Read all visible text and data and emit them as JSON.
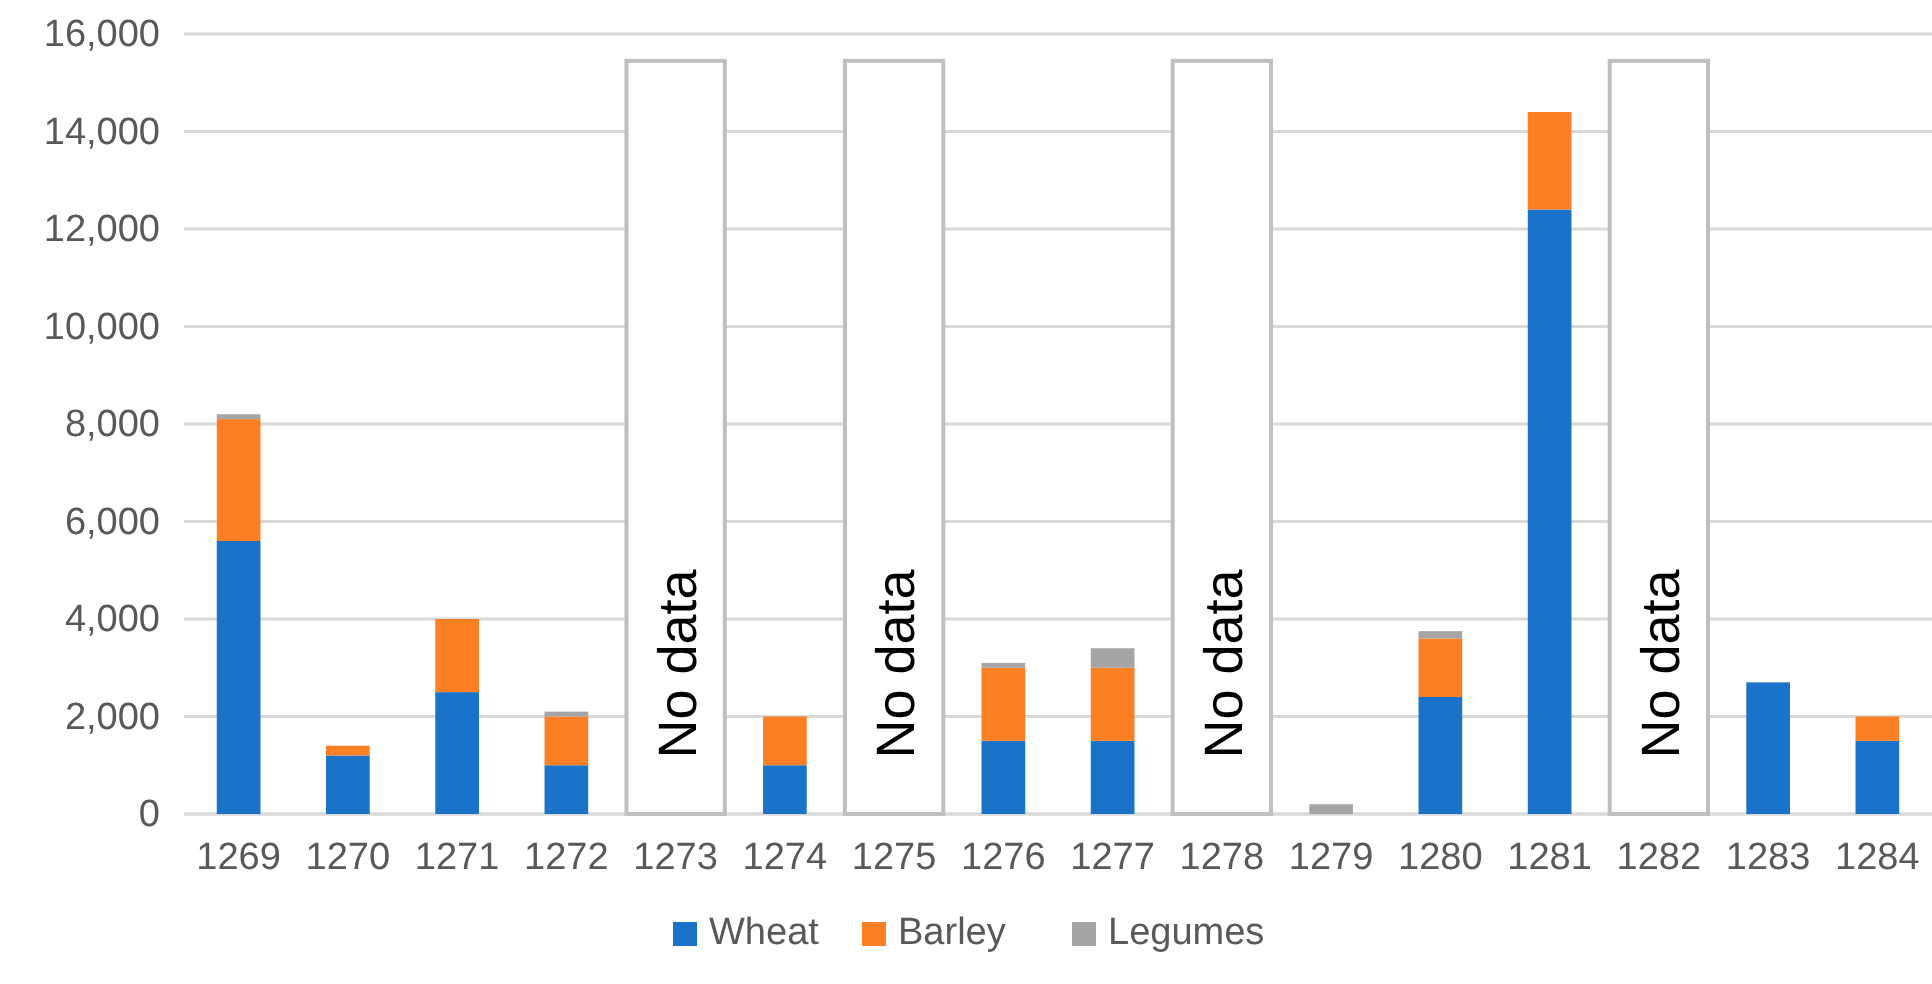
{
  "chart_data": {
    "type": "bar",
    "stacked": true,
    "categories": [
      "1269",
      "1270",
      "1271",
      "1272",
      "1273",
      "1274",
      "1275",
      "1276",
      "1277",
      "1278",
      "1279",
      "1280",
      "1281",
      "1282",
      "1283",
      "1284"
    ],
    "series": [
      {
        "name": "Wheat",
        "color": "#1a73c8",
        "values": [
          5600,
          1200,
          2500,
          1000,
          null,
          1000,
          null,
          1500,
          1500,
          null,
          0,
          2400,
          12400,
          null,
          2700,
          1500
        ]
      },
      {
        "name": "Barley",
        "color": "#fd7f24",
        "values": [
          2500,
          200,
          1500,
          1000,
          null,
          1000,
          null,
          1500,
          1500,
          null,
          0,
          1200,
          2000,
          null,
          0,
          500
        ]
      },
      {
        "name": "Legumes",
        "color": "#a5a5a5",
        "values": [
          100,
          0,
          0,
          100,
          null,
          0,
          null,
          100,
          400,
          null,
          200,
          150,
          0,
          null,
          0,
          0
        ]
      },
      {
        "color": "#ffffff",
        "values": [
          null,
          null,
          null,
          null,
          15450,
          null,
          15450,
          null,
          null,
          15450,
          null,
          null,
          null,
          15450,
          null,
          null
        ],
        "value_labels": [
          null,
          null,
          null,
          null,
          "No data",
          null,
          "No data",
          null,
          null,
          "No data",
          null,
          null,
          null,
          "No data",
          null,
          null
        ]
      }
    ],
    "ylim": [
      0,
      16000
    ],
    "yticks": [
      {
        "value": 0,
        "label": "0"
      },
      {
        "value": 2000,
        "label": "2,000"
      },
      {
        "value": 4000,
        "label": "4,000"
      },
      {
        "value": 6000,
        "label": "6,000"
      },
      {
        "value": 8000,
        "label": "8,000"
      },
      {
        "value": 10000,
        "label": "10,000"
      },
      {
        "value": 12000,
        "label": "12,000"
      },
      {
        "value": 14000,
        "label": "14,000"
      },
      {
        "value": 16000,
        "label": "16,000"
      }
    ],
    "grid": "y",
    "legend": "bottom"
  }
}
